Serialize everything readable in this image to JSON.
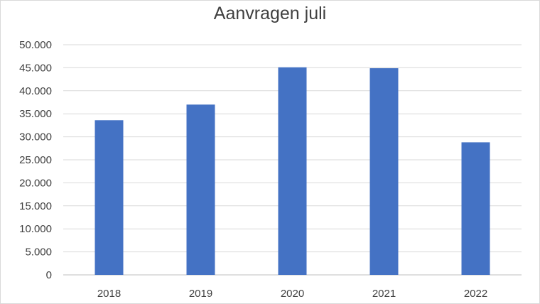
{
  "chart_data": {
    "type": "bar",
    "title": "Aanvragen juli",
    "categories": [
      "2018",
      "2019",
      "2020",
      "2021",
      "2022"
    ],
    "values": [
      33600,
      37000,
      45100,
      44900,
      28800
    ],
    "ylim": [
      0,
      50000
    ],
    "yticks": [
      "0",
      "5.000",
      "10.000",
      "15.000",
      "20.000",
      "25.000",
      "30.000",
      "35.000",
      "40.000",
      "45.000",
      "50.000"
    ],
    "grid": true,
    "legend": "none",
    "bar_color": "#4472c4",
    "xlabel": "",
    "ylabel": ""
  }
}
